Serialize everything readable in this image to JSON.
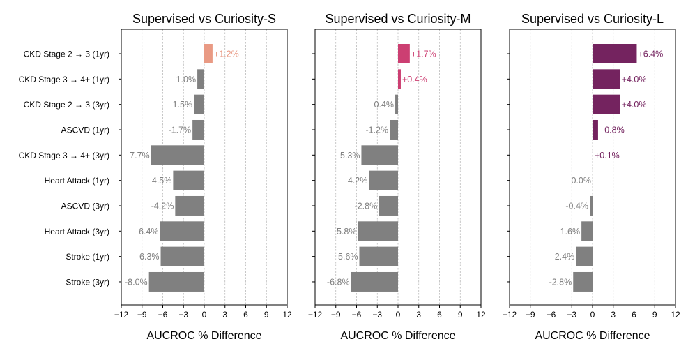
{
  "chart_data": [
    {
      "type": "bar",
      "orientation": "horizontal",
      "title": "Supervised vs Curiosity-S",
      "xlabel": "AUCROC % Difference",
      "xlim": [
        -12,
        12
      ],
      "xticks": [
        -12,
        -9,
        -6,
        -3,
        0,
        3,
        6,
        9,
        12
      ],
      "xtick_labels": [
        "−12",
        "−9",
        "−6",
        "−3",
        "0",
        "3",
        "6",
        "9",
        "12"
      ],
      "grid": "x, dashed",
      "positive_color": "#E99A84",
      "negative_color": "#808080",
      "categories": [
        "CKD Stage 2 → 3 (1yr)",
        "CKD Stage 3 → 4+ (1yr)",
        "CKD Stage 2 → 3 (3yr)",
        "ASCVD (1yr)",
        "CKD Stage 3 → 4+ (3yr)",
        "Heart Attack (1yr)",
        "ASCVD (3yr)",
        "Heart Attack (3yr)",
        "Stroke (1yr)",
        "Stroke (3yr)"
      ],
      "values": [
        1.2,
        -1.0,
        -1.5,
        -1.7,
        -7.7,
        -4.5,
        -4.2,
        -6.4,
        -6.3,
        -8.0
      ],
      "labels": [
        "+1.2%",
        "-1.0%",
        "-1.5%",
        "-1.7%",
        "-7.7%",
        "-4.5%",
        "-4.2%",
        "-6.4%",
        "-6.3%",
        "-8.0%"
      ]
    },
    {
      "type": "bar",
      "orientation": "horizontal",
      "title": "Supervised vs Curiosity-M",
      "xlabel": "AUCROC % Difference",
      "xlim": [
        -12,
        12
      ],
      "xticks": [
        -12,
        -9,
        -6,
        -3,
        0,
        3,
        6,
        9,
        12
      ],
      "xtick_labels": [
        "−12",
        "−9",
        "−6",
        "−3",
        "0",
        "3",
        "6",
        "9",
        "12"
      ],
      "grid": "x, dashed",
      "positive_color": "#CC3F72",
      "negative_color": "#808080",
      "categories": [
        "CKD Stage 2 → 3 (1yr)",
        "CKD Stage 3 → 4+ (1yr)",
        "CKD Stage 2 → 3 (3yr)",
        "ASCVD (1yr)",
        "CKD Stage 3 → 4+ (3yr)",
        "Heart Attack (1yr)",
        "ASCVD (3yr)",
        "Heart Attack (3yr)",
        "Stroke (1yr)",
        "Stroke (3yr)"
      ],
      "values": [
        1.7,
        0.4,
        -0.4,
        -1.2,
        -5.3,
        -4.2,
        -2.8,
        -5.8,
        -5.6,
        -6.8
      ],
      "labels": [
        "+1.7%",
        "+0.4%",
        "-0.4%",
        "-1.2%",
        "-5.3%",
        "-4.2%",
        "-2.8%",
        "-5.8%",
        "-5.6%",
        "-6.8%"
      ]
    },
    {
      "type": "bar",
      "orientation": "horizontal",
      "title": "Supervised vs Curiosity-L",
      "xlabel": "AUCROC % Difference",
      "xlim": [
        -12,
        12
      ],
      "xticks": [
        -12,
        -9,
        -6,
        -3,
        0,
        3,
        6,
        9,
        12
      ],
      "xtick_labels": [
        "−12",
        "−9",
        "−6",
        "−3",
        "0",
        "3",
        "6",
        "9",
        "12"
      ],
      "grid": "x, dashed",
      "positive_color": "#74235F",
      "negative_color": "#808080",
      "categories": [
        "CKD Stage 2 → 3 (1yr)",
        "CKD Stage 3 → 4+ (1yr)",
        "CKD Stage 2 → 3 (3yr)",
        "ASCVD (1yr)",
        "CKD Stage 3 → 4+ (3yr)",
        "Heart Attack (1yr)",
        "ASCVD (3yr)",
        "Heart Attack (3yr)",
        "Stroke (1yr)",
        "Stroke (3yr)"
      ],
      "values": [
        6.4,
        4.0,
        4.0,
        0.8,
        0.1,
        -0.0,
        -0.4,
        -1.6,
        -2.4,
        -2.8
      ],
      "labels": [
        "+6.4%",
        "+4.0%",
        "+4.0%",
        "+0.8%",
        "+0.1%",
        "-0.0%",
        "-0.4%",
        "-1.6%",
        "-2.4%",
        "-2.8%"
      ]
    }
  ]
}
